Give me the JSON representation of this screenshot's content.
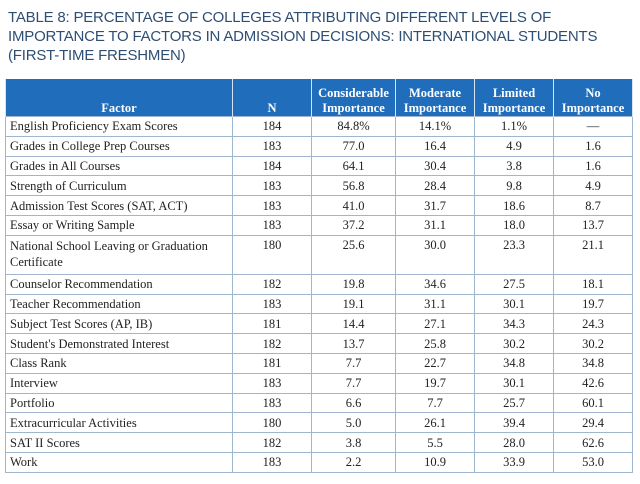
{
  "title": {
    "line1": "TABLE 8: PERCENTAGE OF COLLEGES ATTRIBUTING DIFFERENT LEVELS OF",
    "line2": "IMPORTANCE TO FACTORS IN ADMISSION DECISIONS: INTERNATIONAL STUDENTS",
    "line3": "(FIRST-TIME FRESHMEN)"
  },
  "headers": {
    "factor": "Factor",
    "n": "N",
    "considerable_1": "Considerable",
    "considerable_2": "Importance",
    "moderate_1": "Moderate",
    "moderate_2": "Importance",
    "limited_1": "Limited",
    "limited_2": "Importance",
    "no_1": "No",
    "no_2": "Importance"
  },
  "rows": [
    {
      "factor": "English Proficiency Exam Scores",
      "n": "184",
      "considerable": "84.8%",
      "moderate": "14.1%",
      "limited": "1.1%",
      "no": "—"
    },
    {
      "factor": "Grades in College Prep Courses",
      "n": "183",
      "considerable": "77.0",
      "moderate": "16.4",
      "limited": "4.9",
      "no": "1.6"
    },
    {
      "factor": "Grades in All Courses",
      "n": "184",
      "considerable": "64.1",
      "moderate": "30.4",
      "limited": "3.8",
      "no": "1.6"
    },
    {
      "factor": "Strength of Curriculum",
      "n": "183",
      "considerable": "56.8",
      "moderate": "28.4",
      "limited": "9.8",
      "no": "4.9"
    },
    {
      "factor": "Admission Test Scores (SAT, ACT)",
      "n": "183",
      "considerable": "41.0",
      "moderate": "31.7",
      "limited": "18.6",
      "no": "8.7"
    },
    {
      "factor": "Essay or Writing Sample",
      "n": "183",
      "considerable": "37.2",
      "moderate": "31.1",
      "limited": "18.0",
      "no": "13.7"
    },
    {
      "factor": "National School Leaving or Graduation Certificate",
      "n": "180",
      "considerable": "25.6",
      "moderate": "30.0",
      "limited": "23.3",
      "no": "21.1"
    },
    {
      "factor": "Counselor Recommendation",
      "n": "182",
      "considerable": "19.8",
      "moderate": "34.6",
      "limited": "27.5",
      "no": "18.1"
    },
    {
      "factor": "Teacher Recommendation",
      "n": "183",
      "considerable": "19.1",
      "moderate": "31.1",
      "limited": "30.1",
      "no": "19.7"
    },
    {
      "factor": "Subject Test Scores (AP, IB)",
      "n": "181",
      "considerable": "14.4",
      "moderate": "27.1",
      "limited": "34.3",
      "no": "24.3"
    },
    {
      "factor": "Student's Demonstrated Interest",
      "n": "182",
      "considerable": "13.7",
      "moderate": "25.8",
      "limited": "30.2",
      "no": "30.2"
    },
    {
      "factor": "Class Rank",
      "n": "181",
      "considerable": "7.7",
      "moderate": "22.7",
      "limited": "34.8",
      "no": "34.8"
    },
    {
      "factor": "Interview",
      "n": "183",
      "considerable": "7.7",
      "moderate": "19.7",
      "limited": "30.1",
      "no": "42.6"
    },
    {
      "factor": "Portfolio",
      "n": "183",
      "considerable": "6.6",
      "moderate": "7.7",
      "limited": "25.7",
      "no": "60.1"
    },
    {
      "factor": "Extracurricular Activities",
      "n": "180",
      "considerable": "5.0",
      "moderate": "26.1",
      "limited": "39.4",
      "no": "29.4"
    },
    {
      "factor": "SAT II Scores",
      "n": "182",
      "considerable": "3.8",
      "moderate": "5.5",
      "limited": "28.0",
      "no": "62.6"
    },
    {
      "factor": "Work",
      "n": "183",
      "considerable": "2.2",
      "moderate": "10.9",
      "limited": "33.9",
      "no": "53.0"
    }
  ]
}
